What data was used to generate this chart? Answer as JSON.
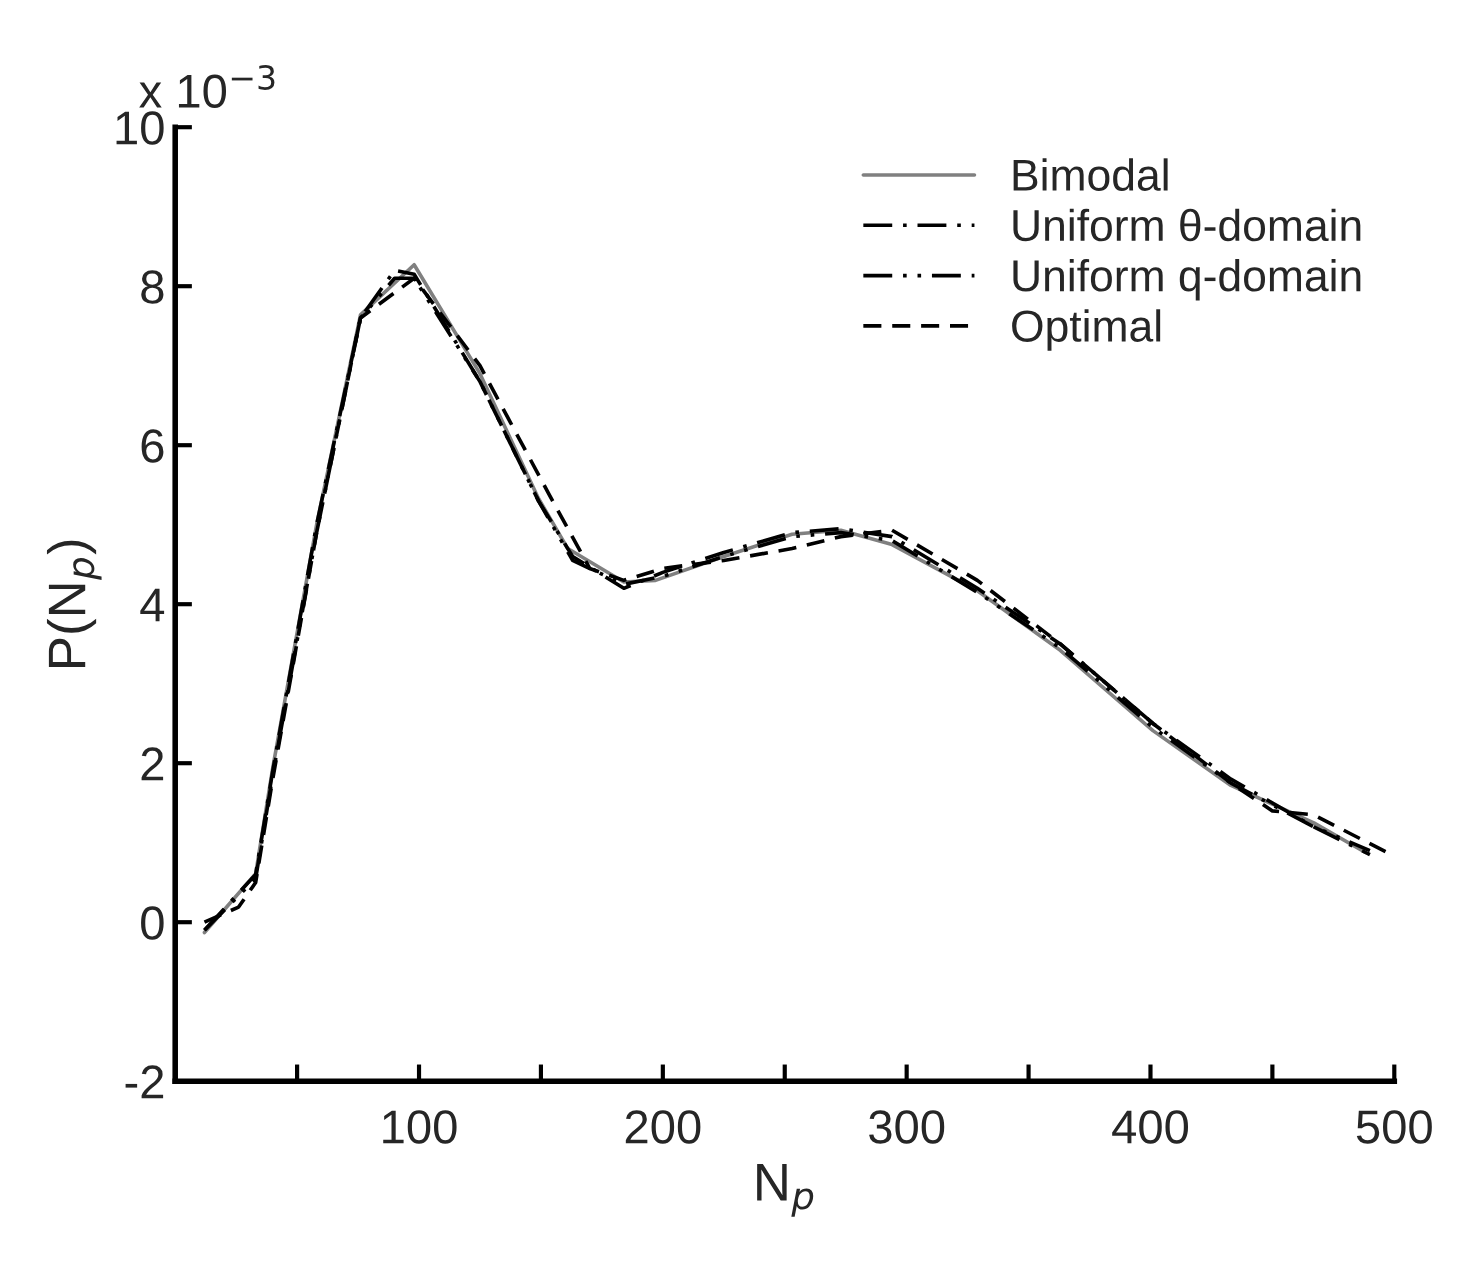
{
  "chart_data": {
    "type": "line",
    "xlabel": "N$_{p}$",
    "ylabel": "P(N$_{p}$)",
    "annotations": [
      "x 10$^{−3}$"
    ],
    "xlim": [
      0,
      500
    ],
    "ylim": [
      -2,
      10
    ],
    "xticks": [
      {
        "value": 50,
        "label": null
      },
      100,
      {
        "value": 150,
        "label": null
      },
      200,
      {
        "value": 250,
        "label": null
      },
      300,
      {
        "value": 350,
        "label": null
      },
      400,
      {
        "value": 450,
        "label": null
      },
      500
    ],
    "yticks": [
      -2,
      0,
      2,
      4,
      6,
      8,
      10
    ],
    "grid": false,
    "legend": "top right",
    "series": [
      {
        "name": "Bimodal",
        "color": "#808080",
        "line_style": "solid",
        "x": [
          12,
          33,
          40,
          58,
          76,
          98,
          125,
          149,
          161,
          184,
          197,
          225,
          253,
          273,
          294,
          329,
          363,
          401,
          433,
          467,
          488
        ],
        "values": [
          -0.13,
          0.61,
          1.94,
          5.0,
          7.64,
          8.27,
          6.9,
          5.33,
          4.7,
          4.28,
          4.3,
          4.6,
          4.88,
          4.93,
          4.75,
          4.17,
          3.42,
          2.41,
          1.72,
          1.25,
          0.88
        ]
      },
      {
        "name": "Uniform θ-domain",
        "color": "#000000",
        "line_style": "dashdot",
        "x": [
          12,
          33,
          40,
          58,
          76,
          90,
          98,
          125,
          149,
          163,
          184,
          200,
          225,
          253,
          273,
          294,
          329,
          363,
          401,
          433,
          467,
          490
        ],
        "values": [
          -0.1,
          0.6,
          1.9,
          5.0,
          7.6,
          8.2,
          8.15,
          6.8,
          5.3,
          4.6,
          4.2,
          4.4,
          4.65,
          4.9,
          4.95,
          4.85,
          4.2,
          3.5,
          2.5,
          1.8,
          1.2,
          0.85
        ]
      },
      {
        "name": "Uniform q-domain",
        "color": "#000000",
        "line_style": "dashdotdot",
        "x": [
          12,
          33,
          40,
          58,
          76,
          90,
          98,
          125,
          149,
          163,
          184,
          200,
          225,
          253,
          273,
          294,
          329,
          363,
          401,
          433,
          467,
          490
        ],
        "values": [
          -0.1,
          0.55,
          1.85,
          4.9,
          7.6,
          8.1,
          8.1,
          6.8,
          5.3,
          4.55,
          4.25,
          4.35,
          4.6,
          4.85,
          4.9,
          4.8,
          4.15,
          3.45,
          2.45,
          1.75,
          1.2,
          0.9
        ]
      },
      {
        "name": "Optimal",
        "color": "#000000",
        "line_style": "dashed",
        "x": [
          12,
          26,
          33,
          40,
          58,
          76,
          98,
          125,
          153,
          170,
          184,
          200,
          225,
          253,
          273,
          294,
          329,
          363,
          401,
          433,
          450,
          467,
          500
        ],
        "values": [
          0.0,
          0.19,
          0.5,
          1.8,
          4.9,
          7.6,
          8.1,
          7.0,
          5.4,
          4.45,
          4.3,
          4.45,
          4.55,
          4.7,
          4.85,
          4.93,
          4.3,
          3.5,
          2.5,
          1.75,
          1.4,
          1.35,
          0.83
        ]
      }
    ]
  }
}
